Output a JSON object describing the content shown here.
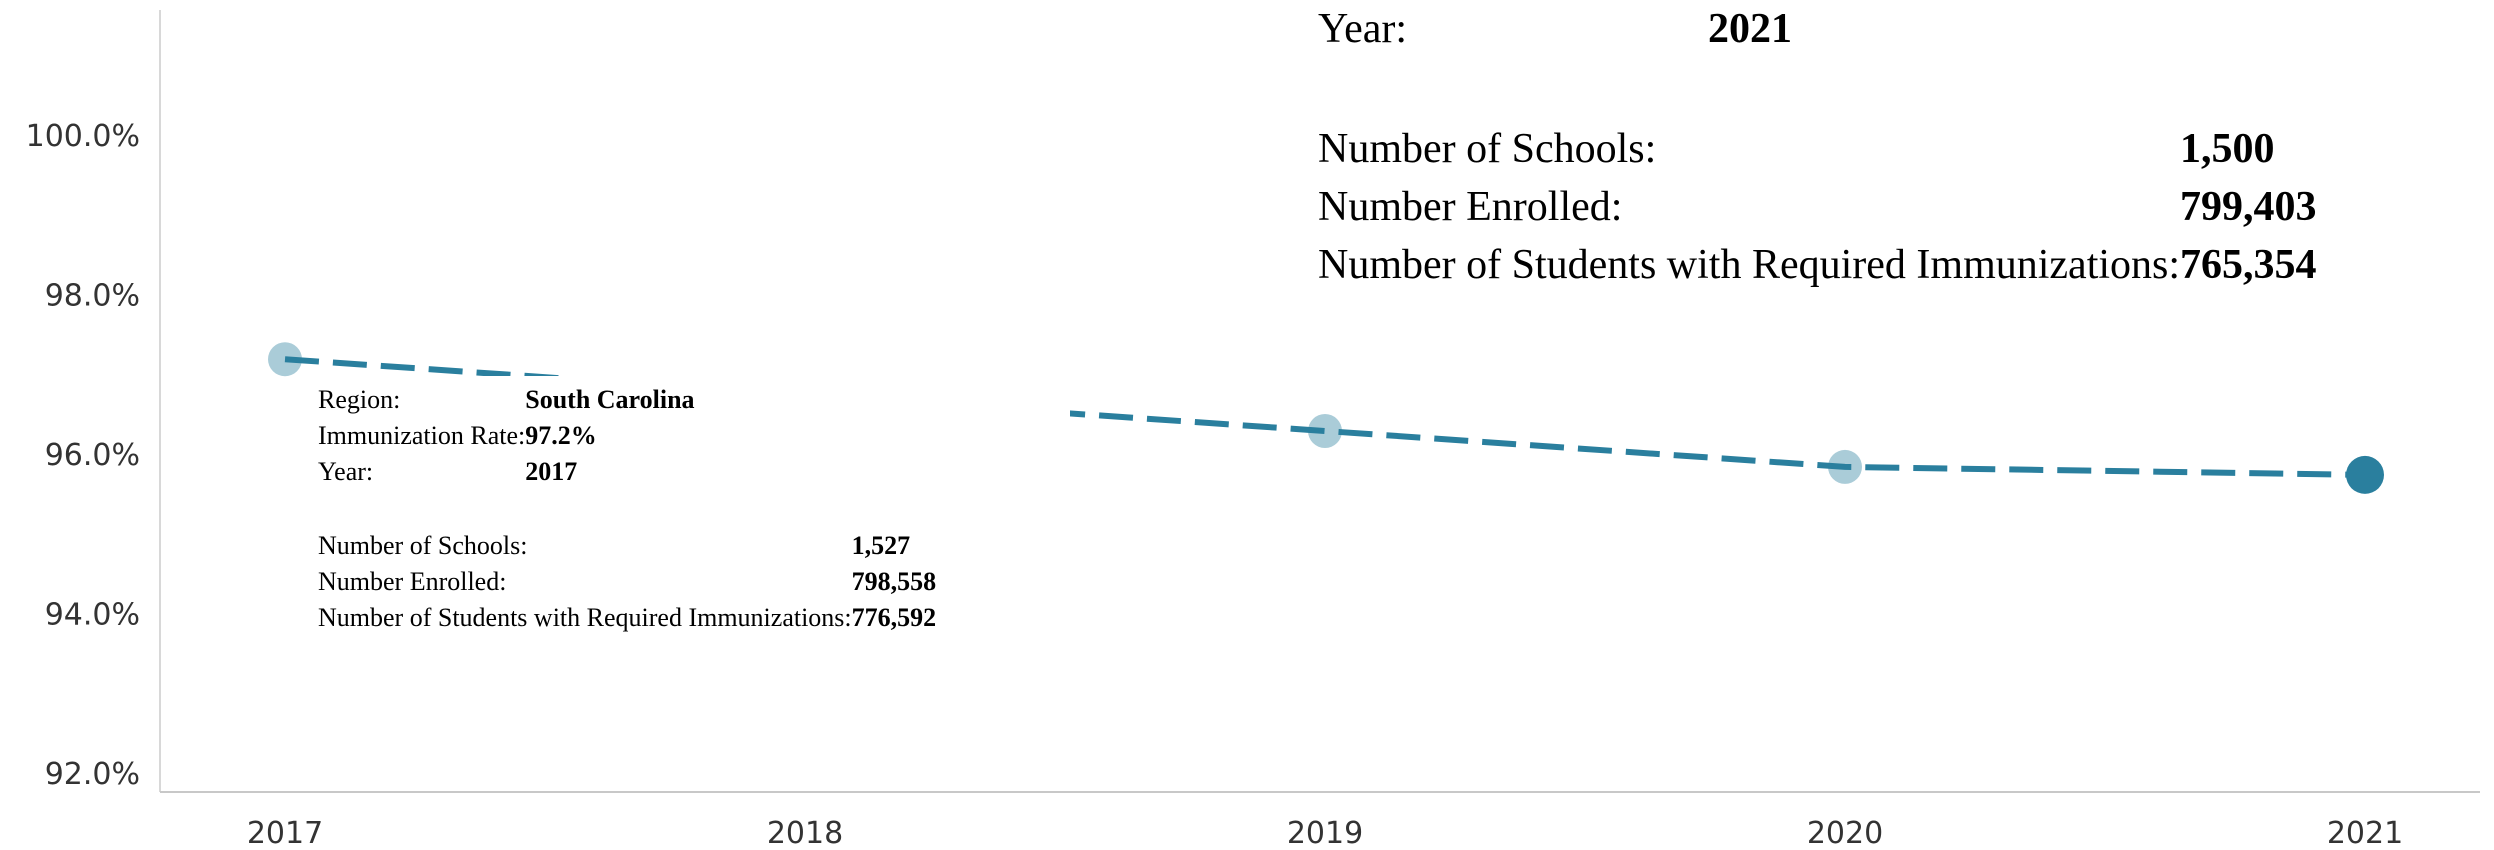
{
  "chart_data": {
    "type": "line",
    "x": [
      "2017",
      "2018",
      "2019",
      "2020",
      "2021"
    ],
    "series": [
      {
        "values": [
          97.2,
          96.75,
          96.3,
          95.85,
          95.75
        ],
        "color": "#2a7f9e",
        "style": "dashed"
      }
    ],
    "ylim": [
      92.0,
      100.5
    ],
    "yticks": [
      "100.0%",
      "98.0%",
      "96.0%",
      "94.0%",
      "92.0%"
    ],
    "ytick_values": [
      100,
      98,
      96,
      94,
      92
    ],
    "grid": false,
    "highlighted_point": "2021"
  },
  "tooltips": {
    "point_2017": {
      "region_label": "Region:",
      "region_value": "South Carolina",
      "rate_label": "Immunization Rate:",
      "rate_value": "97.2%",
      "year_label": "Year:",
      "year_value": "2017",
      "schools_label": "Number of Schools:",
      "schools_value": "1,527",
      "enrolled_label": "Number Enrolled:",
      "enrolled_value": "798,558",
      "immunized_label": "Number of Students with Required Immunizations:",
      "immunized_value": "776,592"
    },
    "point_2021": {
      "year_label": "Year:",
      "year_value": "2021",
      "schools_label": "Number of Schools:",
      "schools_value": "1,500",
      "enrolled_label": "Number Enrolled:",
      "enrolled_value": "799,403",
      "immunized_label": "Number of Students with Required Immunizations:",
      "immunized_value": "765,354"
    }
  }
}
